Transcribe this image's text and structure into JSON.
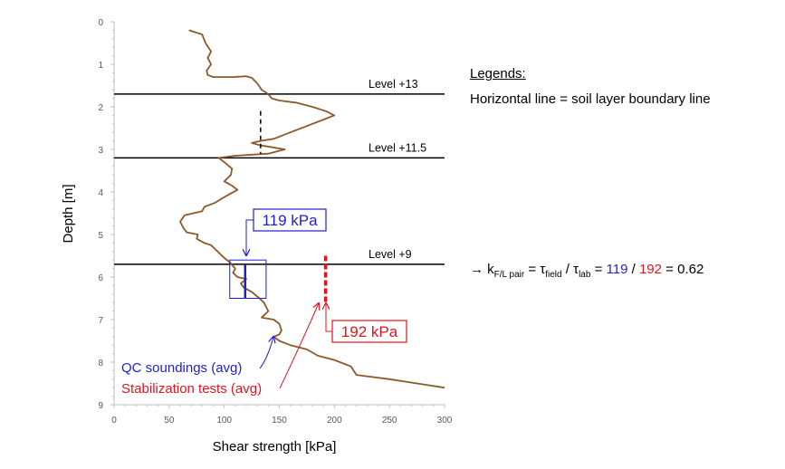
{
  "chart_data": {
    "type": "line",
    "xlabel": "Shear strength [kPa]",
    "ylabel": "Depth [m]",
    "xlim": [
      0,
      300
    ],
    "ylim": [
      0,
      9
    ],
    "y_inverted": true,
    "x_ticks": [
      "0",
      "50",
      "100",
      "150",
      "200",
      "250",
      "300"
    ],
    "y_ticks": [
      "0",
      "1",
      "2",
      "3",
      "4",
      "5",
      "6",
      "7",
      "8",
      "9"
    ],
    "grid": false,
    "series": [
      {
        "color": "#8b5a2b",
        "points": [
          [
            68,
            0.2
          ],
          [
            80,
            0.3
          ],
          [
            83,
            0.5
          ],
          [
            88,
            0.7
          ],
          [
            85,
            0.85
          ],
          [
            88,
            1.0
          ],
          [
            84,
            1.15
          ],
          [
            85,
            1.25
          ],
          [
            90,
            1.3
          ],
          [
            108,
            1.3
          ],
          [
            120,
            1.28
          ],
          [
            125,
            1.32
          ],
          [
            130,
            1.45
          ],
          [
            134,
            1.6
          ],
          [
            140,
            1.7
          ],
          [
            143,
            1.8
          ],
          [
            150,
            1.85
          ],
          [
            165,
            1.9
          ],
          [
            180,
            2.0
          ],
          [
            192,
            2.1
          ],
          [
            200,
            2.2
          ],
          [
            190,
            2.3
          ],
          [
            175,
            2.45
          ],
          [
            160,
            2.6
          ],
          [
            145,
            2.75
          ],
          [
            133,
            2.8
          ],
          [
            125,
            2.85
          ],
          [
            132,
            2.9
          ],
          [
            155,
            3.0
          ],
          [
            140,
            3.1
          ],
          [
            110,
            3.15
          ],
          [
            95,
            3.2
          ],
          [
            100,
            3.3
          ],
          [
            107,
            3.45
          ],
          [
            106,
            3.6
          ],
          [
            100,
            3.75
          ],
          [
            107,
            3.85
          ],
          [
            112,
            3.95
          ],
          [
            105,
            4.05
          ],
          [
            98,
            4.15
          ],
          [
            92,
            4.25
          ],
          [
            82,
            4.35
          ],
          [
            80,
            4.45
          ],
          [
            64,
            4.55
          ],
          [
            60,
            4.7
          ],
          [
            63,
            4.85
          ],
          [
            66,
            4.95
          ],
          [
            76,
            5.0
          ],
          [
            75,
            5.1
          ],
          [
            82,
            5.2
          ],
          [
            88,
            5.25
          ],
          [
            92,
            5.35
          ],
          [
            96,
            5.45
          ],
          [
            100,
            5.55
          ],
          [
            105,
            5.65
          ],
          [
            110,
            5.8
          ],
          [
            108,
            5.9
          ],
          [
            112,
            6.0
          ],
          [
            120,
            6.05
          ],
          [
            115,
            6.15
          ],
          [
            118,
            6.25
          ],
          [
            125,
            6.35
          ],
          [
            132,
            6.5
          ],
          [
            136,
            6.6
          ],
          [
            140,
            6.8
          ],
          [
            134,
            6.95
          ],
          [
            145,
            7.0
          ],
          [
            150,
            7.1
          ],
          [
            152,
            7.25
          ],
          [
            150,
            7.35
          ],
          [
            145,
            7.4
          ],
          [
            150,
            7.5
          ],
          [
            160,
            7.6
          ],
          [
            175,
            7.7
          ],
          [
            185,
            7.85
          ],
          [
            200,
            7.95
          ],
          [
            215,
            8.1
          ],
          [
            220,
            8.3
          ],
          [
            250,
            8.4
          ],
          [
            275,
            8.5
          ],
          [
            300,
            8.6
          ]
        ]
      }
    ],
    "reference_lines": [
      {
        "depth": 1.7,
        "label": "Level +13"
      },
      {
        "depth": 3.2,
        "label": "Level +11.5"
      },
      {
        "depth": 5.7,
        "label": "Level +9"
      }
    ],
    "dashed_segments": [
      {
        "x": 133,
        "depth_from": 2.1,
        "depth_to": 3.1,
        "color": "#000000"
      },
      {
        "x": 192,
        "depth_from": 5.5,
        "depth_to": 6.6,
        "color": "#e0141e"
      }
    ],
    "qc_average": {
      "value": 119,
      "depth_from": 5.7,
      "depth_to": 6.5,
      "color": "#1f1fd0"
    },
    "qc_box": {
      "x_from": 105,
      "x_to": 138,
      "depth_from": 5.6,
      "depth_to": 6.5
    },
    "annotations": {
      "qc_value_label": "119 kPa",
      "stab_value_label": "192 kPa",
      "qc_soundings": "QC soundings (avg)",
      "stabilization_tests": "Stabilization tests (avg)"
    },
    "colors": {
      "profile": "#8b5a2b",
      "qc": "#1f1fd0",
      "stab": "#e0141e",
      "axis": "#bfbfbf"
    }
  },
  "legend": {
    "title": "Legends:",
    "line": "Horizontal line = soil layer boundary line"
  },
  "ratio": {
    "arrow": "→",
    "k": "k",
    "k_sub": "F/L pair",
    "eq1": " = ",
    "tau": "τ",
    "tau_field_sub": "field",
    "slash": " / ",
    "tau_lab_sub": "lab",
    "eq2": " = ",
    "v1": "119",
    "slash2": " / ",
    "v2": "192",
    "eq3": " = ",
    "result": "0.62"
  }
}
